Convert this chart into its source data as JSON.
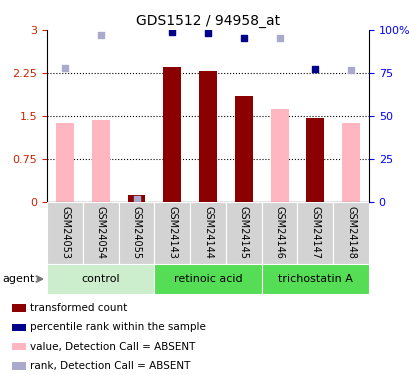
{
  "title": "GDS1512 / 94958_at",
  "categories": [
    "GSM24053",
    "GSM24054",
    "GSM24055",
    "GSM24143",
    "GSM24144",
    "GSM24145",
    "GSM24146",
    "GSM24147",
    "GSM24148"
  ],
  "transformed_count": [
    null,
    null,
    0.12,
    2.35,
    2.28,
    1.85,
    null,
    1.47,
    null
  ],
  "transformed_count_absent": [
    1.37,
    1.42,
    null,
    null,
    null,
    null,
    1.62,
    null,
    1.38
  ],
  "percentile_rank_pct": [
    null,
    null,
    null,
    99.0,
    98.5,
    95.5,
    null,
    77.5,
    null
  ],
  "percentile_rank_absent_pct": [
    78.0,
    97.0,
    1.5,
    null,
    null,
    null,
    95.5,
    null,
    76.5
  ],
  "ylim_left": [
    0,
    3
  ],
  "ylim_right": [
    0,
    100
  ],
  "yticks_left": [
    0,
    0.75,
    1.5,
    2.25,
    3
  ],
  "ytick_labels_left": [
    "0",
    "0.75",
    "1.5",
    "2.25",
    "3"
  ],
  "yticks_right": [
    0,
    25,
    50,
    75,
    100
  ],
  "ytick_labels_right": [
    "0",
    "25",
    "50",
    "75",
    "100%"
  ],
  "color_dark_red": "#8B0000",
  "color_pink": "#FFB6C1",
  "color_dark_blue": "#00008B",
  "color_light_blue": "#AAAACC",
  "group_defs": [
    {
      "name": "control",
      "start": 0,
      "end": 2,
      "facecolor": "#CCEECC"
    },
    {
      "name": "retinoic acid",
      "start": 3,
      "end": 5,
      "facecolor": "#55DD55"
    },
    {
      "name": "trichostatin A",
      "start": 6,
      "end": 8,
      "facecolor": "#55DD55"
    }
  ],
  "agent_label": "agent",
  "legend_items": [
    {
      "color": "#8B0000",
      "label": "transformed count"
    },
    {
      "color": "#00008B",
      "label": "percentile rank within the sample"
    },
    {
      "color": "#FFB6C1",
      "label": "value, Detection Call = ABSENT"
    },
    {
      "color": "#AAAACC",
      "label": "rank, Detection Call = ABSENT"
    }
  ],
  "hlines": [
    0.75,
    1.5,
    2.25
  ],
  "bar_width": 0.5
}
